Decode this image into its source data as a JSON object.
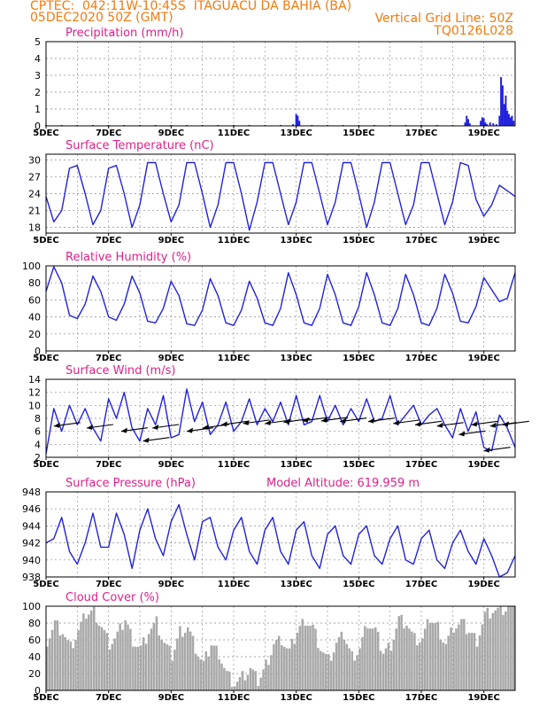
{
  "header": {
    "line1": "CPTEC:  042:11W-10:45S  ITAGUACU DA BAHIA (BA)",
    "line2": "05DEC2020 50Z (GMT)",
    "grid_note": "Vertical Grid Line: 50Z",
    "code": "TQ0126L028",
    "model_altitude": "Model Altitude: 619.959 m"
  },
  "colors": {
    "header": "#f07a10",
    "title": "#e0208a",
    "line": "#2222dd",
    "cloud": "#a8a8a8",
    "grid": "#888888"
  },
  "x_tick_labels": [
    "5DEC",
    "7DEC",
    "9DEC",
    "11DEC",
    "13DEC",
    "15DEC",
    "17DEC",
    "19DEC"
  ],
  "x_range_days": [
    5,
    20
  ],
  "chart_data": [
    {
      "type": "bar",
      "title": "Precipitation (mm/h)",
      "ylim": [
        0,
        5
      ],
      "yticks": [
        "0",
        "1",
        "2",
        "3",
        "4",
        "5"
      ],
      "grid": true,
      "day": [
        5.0,
        5.5,
        6.0,
        6.5,
        7.0,
        7.5,
        8.0,
        8.5,
        9.0,
        9.5,
        10.0,
        10.5,
        11.0,
        11.5,
        12.0,
        12.5,
        12.9,
        13.0,
        13.05,
        13.1,
        13.5,
        14.0,
        14.5,
        15.0,
        15.5,
        16.0,
        16.5,
        17.0,
        17.5,
        18.0,
        18.4,
        18.45,
        18.5,
        18.55,
        18.9,
        18.95,
        19.0,
        19.05,
        19.1,
        19.2,
        19.3,
        19.4,
        19.5,
        19.55,
        19.6,
        19.65,
        19.7,
        19.75,
        19.8,
        19.85,
        19.9,
        19.95
      ],
      "values": [
        0.05,
        0.05,
        0.05,
        0.05,
        0.05,
        0.05,
        0.05,
        0.05,
        0.05,
        0.05,
        0.05,
        0.05,
        0.05,
        0.05,
        0.05,
        0.05,
        0.1,
        0.7,
        0.6,
        0.3,
        0.05,
        0.05,
        0.05,
        0.05,
        0.05,
        0.05,
        0.05,
        0.05,
        0.05,
        0.05,
        0.2,
        0.6,
        0.4,
        0.15,
        0.3,
        0.5,
        0.45,
        0.2,
        0.1,
        0.2,
        0.15,
        0.1,
        0.6,
        2.9,
        2.4,
        1.3,
        1.8,
        0.9,
        0.7,
        0.5,
        0.6,
        0.3
      ]
    },
    {
      "type": "line",
      "title": "Surface Temperature (nC)",
      "ylim": [
        17,
        31
      ],
      "yticks": [
        "18",
        "21",
        "24",
        "27",
        "30"
      ],
      "grid": true,
      "day": [
        5.0,
        5.25,
        5.5,
        5.75,
        6.0,
        6.25,
        6.5,
        6.75,
        7.0,
        7.25,
        7.5,
        7.75,
        8.0,
        8.25,
        8.5,
        8.75,
        9.0,
        9.25,
        9.5,
        9.75,
        10.0,
        10.25,
        10.5,
        10.75,
        11.0,
        11.25,
        11.5,
        11.75,
        12.0,
        12.25,
        12.5,
        12.75,
        13.0,
        13.25,
        13.5,
        13.75,
        14.0,
        14.25,
        14.5,
        14.75,
        15.0,
        15.25,
        15.5,
        15.75,
        16.0,
        16.25,
        16.5,
        16.75,
        17.0,
        17.25,
        17.5,
        17.75,
        18.0,
        18.25,
        18.5,
        18.75,
        19.0,
        19.25,
        19.5,
        19.75,
        20.0
      ],
      "values": [
        23.5,
        19.0,
        21.0,
        28.5,
        29.0,
        24.0,
        18.5,
        21.0,
        28.5,
        29.0,
        24.0,
        18.0,
        22.0,
        29.5,
        29.5,
        24.0,
        19.0,
        22.0,
        29.5,
        29.5,
        24.0,
        18.0,
        22.0,
        29.5,
        29.5,
        24.0,
        17.5,
        22.5,
        29.5,
        29.5,
        24.0,
        18.5,
        22.5,
        29.5,
        29.5,
        24.0,
        18.5,
        22.5,
        29.5,
        29.5,
        24.0,
        18.0,
        22.5,
        29.5,
        29.5,
        24.0,
        18.5,
        22.0,
        29.5,
        29.5,
        24.0,
        18.5,
        22.5,
        29.5,
        29.0,
        23.0,
        20.0,
        22.0,
        25.5,
        24.5,
        23.5
      ]
    },
    {
      "type": "line",
      "title": "Relative Humidity (%)",
      "ylim": [
        0,
        100
      ],
      "yticks": [
        "0",
        "20",
        "40",
        "60",
        "80",
        "100"
      ],
      "grid": true,
      "day": [
        5.0,
        5.25,
        5.5,
        5.75,
        6.0,
        6.25,
        6.5,
        6.75,
        7.0,
        7.25,
        7.5,
        7.75,
        8.0,
        8.25,
        8.5,
        8.75,
        9.0,
        9.25,
        9.5,
        9.75,
        10.0,
        10.25,
        10.5,
        10.75,
        11.0,
        11.25,
        11.5,
        11.75,
        12.0,
        12.25,
        12.5,
        12.75,
        13.0,
        13.25,
        13.5,
        13.75,
        14.0,
        14.25,
        14.5,
        14.75,
        15.0,
        15.25,
        15.5,
        15.75,
        16.0,
        16.25,
        16.5,
        16.75,
        17.0,
        17.25,
        17.5,
        17.75,
        18.0,
        18.25,
        18.5,
        18.75,
        19.0,
        19.25,
        19.5,
        19.75,
        20.0
      ],
      "values": [
        70,
        99,
        80,
        42,
        38,
        55,
        88,
        70,
        40,
        36,
        55,
        88,
        68,
        35,
        33,
        50,
        82,
        65,
        32,
        30,
        48,
        85,
        65,
        33,
        30,
        48,
        82,
        62,
        33,
        30,
        50,
        92,
        66,
        33,
        30,
        50,
        90,
        66,
        33,
        30,
        52,
        92,
        66,
        33,
        30,
        50,
        90,
        66,
        33,
        30,
        50,
        90,
        68,
        35,
        33,
        52,
        86,
        72,
        58,
        62,
        92
      ]
    },
    {
      "type": "line",
      "title": "Surface Wind (m/s)",
      "ylim": [
        2,
        14
      ],
      "yticks": [
        "2",
        "4",
        "6",
        "8",
        "10",
        "12",
        "14"
      ],
      "grid": true,
      "day": [
        5.0,
        5.25,
        5.5,
        5.75,
        6.0,
        6.25,
        6.5,
        6.75,
        7.0,
        7.25,
        7.5,
        7.75,
        8.0,
        8.25,
        8.5,
        8.75,
        9.0,
        9.25,
        9.5,
        9.75,
        10.0,
        10.25,
        10.5,
        10.75,
        11.0,
        11.25,
        11.5,
        11.75,
        12.0,
        12.25,
        12.5,
        12.75,
        13.0,
        13.25,
        13.5,
        13.75,
        14.0,
        14.25,
        14.5,
        14.75,
        15.0,
        15.25,
        15.5,
        15.75,
        16.0,
        16.25,
        16.5,
        16.75,
        17.0,
        17.25,
        17.5,
        17.75,
        18.0,
        18.25,
        18.5,
        18.75,
        19.0,
        19.25,
        19.5,
        19.75,
        20.0
      ],
      "values": [
        2.5,
        9.5,
        6.0,
        10.0,
        7.0,
        9.5,
        6.5,
        4.5,
        11.0,
        8.0,
        12.0,
        6.5,
        4.5,
        9.5,
        7.0,
        11.5,
        5.0,
        5.5,
        12.5,
        7.5,
        10.5,
        5.5,
        7.0,
        10.5,
        6.0,
        7.5,
        11.0,
        7.0,
        9.5,
        7.5,
        10.5,
        7.0,
        11.5,
        7.0,
        7.5,
        11.5,
        7.5,
        10.0,
        7.0,
        9.5,
        7.5,
        11.0,
        7.5,
        8.0,
        11.5,
        7.0,
        8.5,
        10.0,
        7.0,
        8.5,
        9.5,
        7.0,
        5.0,
        9.5,
        6.0,
        9.0,
        3.5,
        3.0,
        8.5,
        6.5,
        3.5
      ],
      "arrows": [
        {
          "day": 5.25,
          "value": 6.8
        },
        {
          "day": 6.3,
          "value": 6.5
        },
        {
          "day": 7.4,
          "value": 6.0
        },
        {
          "day": 8.1,
          "value": 4.5
        },
        {
          "day": 8.4,
          "value": 6.5
        },
        {
          "day": 9.5,
          "value": 6.0
        },
        {
          "day": 10.0,
          "value": 6.5
        },
        {
          "day": 10.6,
          "value": 7.0
        },
        {
          "day": 11.3,
          "value": 7.2
        },
        {
          "day": 12.0,
          "value": 7.2
        },
        {
          "day": 12.6,
          "value": 7.4
        },
        {
          "day": 13.2,
          "value": 7.6
        },
        {
          "day": 13.8,
          "value": 7.6
        },
        {
          "day": 14.4,
          "value": 7.5
        },
        {
          "day": 15.3,
          "value": 7.5
        },
        {
          "day": 16.1,
          "value": 7.2
        },
        {
          "day": 16.8,
          "value": 7.0
        },
        {
          "day": 17.5,
          "value": 6.8
        },
        {
          "day": 18.2,
          "value": 5.5
        },
        {
          "day": 18.6,
          "value": 7.0
        },
        {
          "day": 19.0,
          "value": 3.0
        },
        {
          "day": 19.2,
          "value": 6.8
        },
        {
          "day": 19.6,
          "value": 7.0
        }
      ]
    },
    {
      "type": "line",
      "title": "Surface Pressure (hPa)",
      "ylim": [
        938,
        948
      ],
      "yticks": [
        "938",
        "940",
        "942",
        "944",
        "946",
        "948"
      ],
      "grid": true,
      "day": [
        5.0,
        5.25,
        5.5,
        5.75,
        6.0,
        6.25,
        6.5,
        6.75,
        7.0,
        7.25,
        7.5,
        7.75,
        8.0,
        8.25,
        8.5,
        8.75,
        9.0,
        9.25,
        9.5,
        9.75,
        10.0,
        10.25,
        10.5,
        10.75,
        11.0,
        11.25,
        11.5,
        11.75,
        12.0,
        12.25,
        12.5,
        12.75,
        13.0,
        13.25,
        13.5,
        13.75,
        14.0,
        14.25,
        14.5,
        14.75,
        15.0,
        15.25,
        15.5,
        15.75,
        16.0,
        16.25,
        16.5,
        16.75,
        17.0,
        17.25,
        17.5,
        17.75,
        18.0,
        18.25,
        18.5,
        18.75,
        19.0,
        19.25,
        19.5,
        19.75,
        20.0
      ],
      "values": [
        942.0,
        942.5,
        945.0,
        941.0,
        939.5,
        942.0,
        945.5,
        941.5,
        941.5,
        945.5,
        943.0,
        939.0,
        943.5,
        946.0,
        942.5,
        940.5,
        944.5,
        946.5,
        943.0,
        940.0,
        944.5,
        945.0,
        941.5,
        940.0,
        943.5,
        945.0,
        941.0,
        939.5,
        943.5,
        945.0,
        941.0,
        939.5,
        943.5,
        944.5,
        940.5,
        939.0,
        943.0,
        944.0,
        940.5,
        939.5,
        943.0,
        944.0,
        940.5,
        939.5,
        942.5,
        944.0,
        940.0,
        939.5,
        942.5,
        943.5,
        940.0,
        939.0,
        942.0,
        943.5,
        941.0,
        939.5,
        942.5,
        940.5,
        938.0,
        938.5,
        940.5
      ]
    },
    {
      "type": "area",
      "title": "Cloud Cover (%)",
      "ylim": [
        0,
        100
      ],
      "yticks": [
        "0",
        "20",
        "40",
        "60",
        "80",
        "100"
      ],
      "grid": true,
      "day": [
        5.0,
        5.25,
        5.5,
        5.75,
        6.0,
        6.25,
        6.5,
        6.75,
        7.0,
        7.25,
        7.5,
        7.75,
        8.0,
        8.25,
        8.5,
        8.75,
        9.0,
        9.25,
        9.5,
        9.75,
        10.0,
        10.25,
        10.5,
        10.75,
        11.0,
        11.25,
        11.5,
        11.75,
        12.0,
        12.25,
        12.5,
        12.75,
        13.0,
        13.25,
        13.5,
        13.75,
        14.0,
        14.25,
        14.5,
        14.75,
        15.0,
        15.25,
        15.5,
        15.75,
        16.0,
        16.25,
        16.5,
        16.75,
        17.0,
        17.25,
        17.5,
        17.75,
        18.0,
        18.25,
        18.5,
        18.75,
        19.0,
        19.25,
        19.5,
        19.75,
        20.0
      ],
      "values": [
        60,
        80,
        70,
        50,
        70,
        90,
        95,
        75,
        55,
        65,
        85,
        60,
        50,
        70,
        80,
        55,
        40,
        70,
        75,
        50,
        30,
        55,
        45,
        20,
        8,
        15,
        25,
        10,
        30,
        55,
        60,
        45,
        70,
        85,
        75,
        50,
        35,
        55,
        65,
        40,
        50,
        80,
        70,
        45,
        55,
        85,
        80,
        60,
        60,
        85,
        75,
        55,
        75,
        80,
        70,
        60,
        90,
        95,
        95,
        98,
        100
      ]
    }
  ]
}
